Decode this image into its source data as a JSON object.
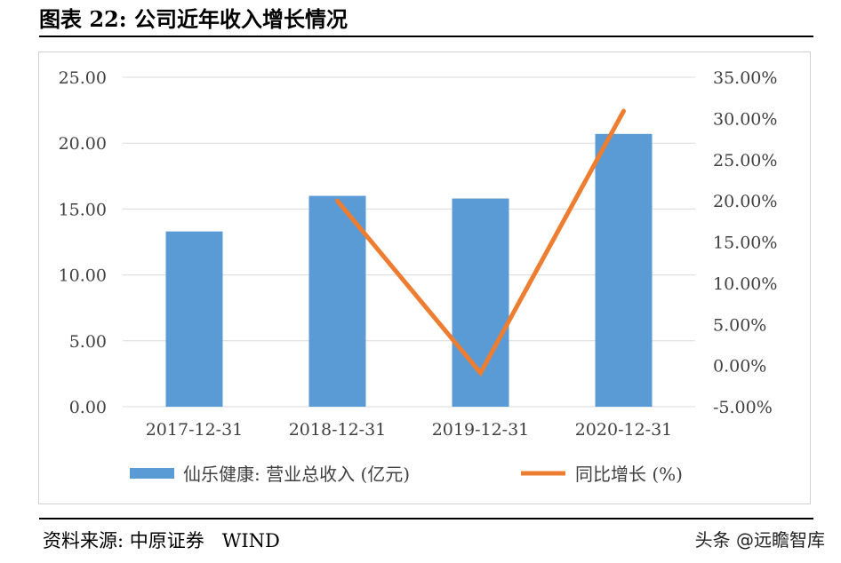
{
  "header": {
    "title": "图表 22:    公司近年收入增长情况"
  },
  "footer": {
    "source_label": "资料来源: 中原证券",
    "source_value": "WIND",
    "watermark": "头条 @远瞻智库"
  },
  "colors": {
    "bar": "#5b9bd5",
    "line": "#ed7d31",
    "grid": "#d9d9d9"
  },
  "chart_data": {
    "type": "bar+line",
    "categories": [
      "2017-12-31",
      "2018-12-31",
      "2019-12-31",
      "2020-12-31"
    ],
    "series": [
      {
        "name": "仙乐健康: 营业总收入 (亿元)",
        "type": "bar",
        "axis": "left",
        "values": [
          13.3,
          16.0,
          15.8,
          20.7
        ]
      },
      {
        "name": "同比增长 (%)",
        "type": "line",
        "axis": "right",
        "values": [
          null,
          20.0,
          -0.9,
          30.9
        ]
      }
    ],
    "y_left": {
      "min": 0,
      "max": 25,
      "ticks": [
        "0.00",
        "5.00",
        "10.00",
        "15.00",
        "20.00",
        "25.00"
      ]
    },
    "y_right": {
      "min": -5,
      "max": 35,
      "ticks": [
        "-5.00%",
        "0.00%",
        "5.00%",
        "10.00%",
        "15.00%",
        "20.00%",
        "25.00%",
        "30.00%",
        "35.00%"
      ]
    },
    "grid": true,
    "legend_position": "bottom"
  }
}
